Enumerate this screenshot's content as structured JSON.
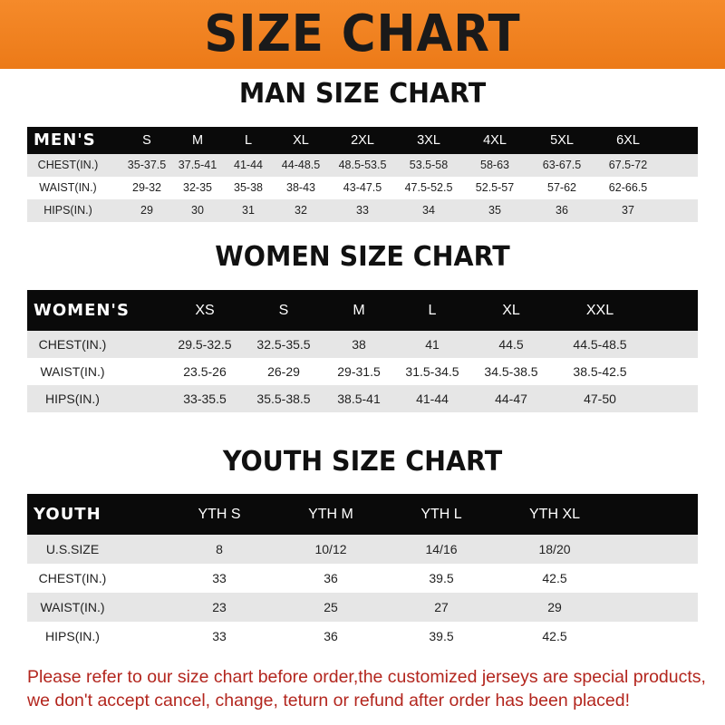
{
  "banner_title": "SIZE CHART",
  "men": {
    "title": "MAN SIZE CHART",
    "header_label": "MEN'S",
    "sizes": [
      "S",
      "M",
      "L",
      "XL",
      "2XL",
      "3XL",
      "4XL",
      "5XL",
      "6XL"
    ],
    "rows": [
      {
        "label": "CHEST(IN.)",
        "values": [
          "35-37.5",
          "37.5-41",
          "41-44",
          "44-48.5",
          "48.5-53.5",
          "53.5-58",
          "58-63",
          "63-67.5",
          "67.5-72"
        ]
      },
      {
        "label": "WAIST(IN.)",
        "values": [
          "29-32",
          "32-35",
          "35-38",
          "38-43",
          "43-47.5",
          "47.5-52.5",
          "52.5-57",
          "57-62",
          "62-66.5"
        ]
      },
      {
        "label": "HIPS(IN.)",
        "values": [
          "29",
          "30",
          "31",
          "32",
          "33",
          "34",
          "35",
          "36",
          "37"
        ]
      }
    ]
  },
  "women": {
    "title": "WOMEN SIZE CHART",
    "header_label": "WOMEN'S",
    "sizes": [
      "XS",
      "S",
      "M",
      "L",
      "XL",
      "XXL"
    ],
    "rows": [
      {
        "label": "CHEST(IN.)",
        "values": [
          "29.5-32.5",
          "32.5-35.5",
          "38",
          "41",
          "44.5",
          "44.5-48.5"
        ]
      },
      {
        "label": "WAIST(IN.)",
        "values": [
          "23.5-26",
          "26-29",
          "29-31.5",
          "31.5-34.5",
          "34.5-38.5",
          "38.5-42.5"
        ]
      },
      {
        "label": "HIPS(IN.)",
        "values": [
          "33-35.5",
          "35.5-38.5",
          "38.5-41",
          "41-44",
          "44-47",
          "47-50"
        ]
      }
    ]
  },
  "youth": {
    "title": "YOUTH SIZE CHART",
    "header_label": "YOUTH",
    "sizes": [
      "YTH S",
      "YTH M",
      "YTH L",
      "YTH XL"
    ],
    "rows": [
      {
        "label": "U.S.SIZE",
        "values": [
          "8",
          "10/12",
          "14/16",
          "18/20"
        ]
      },
      {
        "label": "CHEST(IN.)",
        "values": [
          "33",
          "36",
          "39.5",
          "42.5"
        ]
      },
      {
        "label": "WAIST(IN.)",
        "values": [
          "23",
          "25",
          "27",
          "29"
        ]
      },
      {
        "label": "HIPS(IN.)",
        "values": [
          "33",
          "36",
          "39.5",
          "42.5"
        ]
      }
    ]
  },
  "note": "Please refer to our size chart before order,the customized jerseys are special products, we don't accept cancel, change, teturn or refund after order has been placed!"
}
